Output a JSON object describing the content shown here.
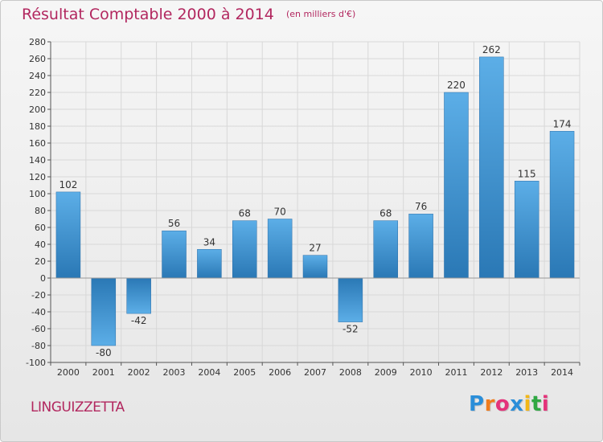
{
  "title": "Résultat Comptable 2000 à 2014",
  "unit_note": "(en milliers d'€)",
  "town": "LINGUIZZETTA",
  "logo": {
    "letters": [
      "P",
      "r",
      "o",
      "x",
      "i",
      "t",
      "i"
    ]
  },
  "colors": {
    "title": "#b2275f",
    "bar_light": "#5aaee8",
    "bar_dark": "#2a78b5",
    "grid": "#d8d8d8",
    "axis": "#555555"
  },
  "chart_data": {
    "type": "bar",
    "categories": [
      "2000",
      "2001",
      "2002",
      "2003",
      "2004",
      "2005",
      "2006",
      "2007",
      "2008",
      "2009",
      "2010",
      "2011",
      "2012",
      "2013",
      "2014"
    ],
    "values": [
      102,
      -80,
      -42,
      56,
      34,
      68,
      70,
      27,
      -52,
      68,
      76,
      220,
      262,
      115,
      174
    ],
    "value_labels": [
      "102",
      "-80",
      "-42",
      "56",
      "34",
      "68",
      "70",
      "27",
      "-52",
      "68",
      "76",
      "220",
      "262",
      "115",
      "174"
    ],
    "ylim": [
      -100,
      280
    ],
    "ytick_step": 20,
    "yticks": [
      "-100",
      "-80",
      "-60",
      "-40",
      "-20",
      "0",
      "20",
      "40",
      "60",
      "80",
      "100",
      "120",
      "140",
      "160",
      "180",
      "200",
      "220",
      "240",
      "260",
      "280"
    ],
    "title": "Résultat Comptable 2000 à 2014",
    "grid": true
  }
}
